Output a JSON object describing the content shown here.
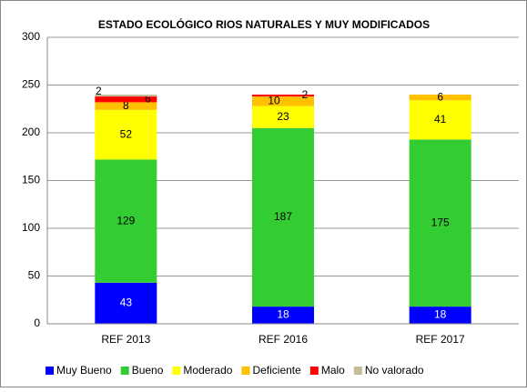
{
  "chart_data": {
    "type": "stacked_bar",
    "title": "ESTADO ECOLÓGICO RIOS NATURALES Y MUY MODIFICADOS",
    "categories": [
      "REF 2013",
      "REF 2016",
      "REF 2017"
    ],
    "series": [
      {
        "name": "Muy Bueno",
        "color": "#0000ff",
        "values": [
          43,
          18,
          18
        ]
      },
      {
        "name": "Bueno",
        "color": "#33cc33",
        "values": [
          129,
          187,
          175
        ]
      },
      {
        "name": "Moderado",
        "color": "#ffff00",
        "values": [
          52,
          23,
          41
        ]
      },
      {
        "name": "Deficiente",
        "color": "#ffc000",
        "values": [
          8,
          10,
          6
        ]
      },
      {
        "name": "Malo",
        "color": "#ff0000",
        "values": [
          6,
          2,
          null
        ]
      },
      {
        "name": "No valorado",
        "color": "#c4bd97",
        "values": [
          2,
          null,
          null
        ]
      }
    ],
    "ylim": [
      0,
      300
    ],
    "yticks": [
      0,
      50,
      100,
      150,
      200,
      250,
      300
    ],
    "grid": true,
    "legend": "bottom"
  }
}
